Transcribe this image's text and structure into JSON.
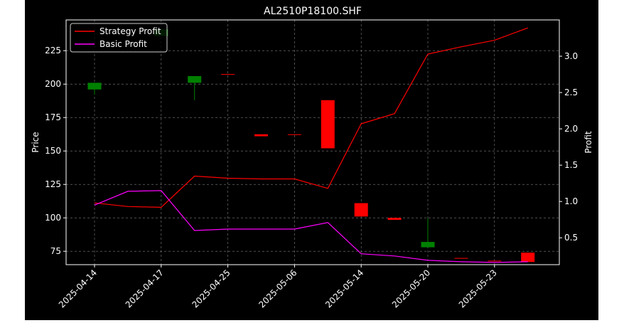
{
  "chart_data": {
    "type": "candlestick+line",
    "title": "AL2510P18100.SHF",
    "ylabel_left": "Price",
    "ylabel_right": "Profit",
    "grid": true,
    "legend_placement": "top-left",
    "legend": [
      "Strategy Profit",
      "Basic Profit"
    ],
    "colors": {
      "background": "#000000",
      "up": "#008000",
      "down": "#ff0000",
      "strategy": "#ff0000",
      "basic": "#ff00ff",
      "text": "#ffffff",
      "grid": "#808080"
    },
    "x_tick_labels": [
      "2025-04-14",
      "2025-04-17",
      "2025-04-25",
      "2025-05-06",
      "2025-05-14",
      "2025-05-20",
      "2025-05-23"
    ],
    "x_tick_index": [
      0,
      2,
      4,
      6,
      8,
      10,
      12
    ],
    "ylim_left": [
      65,
      248
    ],
    "yticks_left": [
      75,
      100,
      125,
      150,
      175,
      200,
      225
    ],
    "ylim_right": [
      0.13,
      3.5
    ],
    "yticks_right": [
      "0.5",
      "1.0",
      "1.5",
      "2.0",
      "2.5",
      "3.0"
    ],
    "candles": [
      {
        "index": 0,
        "open": 196,
        "close": 201,
        "high": 201,
        "low": 192
      },
      {
        "index": 1,
        "open": 250,
        "close": 250,
        "high": 250,
        "low": 250
      },
      {
        "index": 2,
        "open": 236,
        "close": 241,
        "high": 241,
        "low": 236
      },
      {
        "index": 3,
        "open": 201,
        "close": 206,
        "high": 206,
        "low": 188
      },
      {
        "index": 4,
        "open": 207.5,
        "close": 207,
        "high": 207.5,
        "low": 207
      },
      {
        "index": 5,
        "open": 162.5,
        "close": 161,
        "high": 162.5,
        "low": 161
      },
      {
        "index": 6,
        "open": 162.5,
        "close": 162,
        "high": 162.5,
        "low": 162
      },
      {
        "index": 7,
        "open": 188,
        "close": 152,
        "high": 188,
        "low": 152
      },
      {
        "index": 8,
        "open": 111,
        "close": 101,
        "high": 111,
        "low": 101
      },
      {
        "index": 9,
        "open": 100,
        "close": 98.5,
        "high": 100,
        "low": 98.5
      },
      {
        "index": 10,
        "open": 78,
        "close": 82,
        "high": 100,
        "low": 78
      },
      {
        "index": 11,
        "open": 70,
        "close": 69.5,
        "high": 70,
        "low": 69.5
      },
      {
        "index": 12,
        "open": 68,
        "close": 67.5,
        "high": 68,
        "low": 67.5
      },
      {
        "index": 13,
        "open": 74,
        "close": 67,
        "high": 74,
        "low": 67
      }
    ],
    "series": [
      {
        "name": "Strategy Profit",
        "values": [
          0.98,
          0.93,
          0.92,
          1.35,
          1.32,
          1.31,
          1.31,
          1.18,
          2.07,
          2.21,
          3.03,
          3.13,
          3.22,
          3.39
        ]
      },
      {
        "name": "Basic Profit",
        "values": [
          0.95,
          1.14,
          1.15,
          0.6,
          0.62,
          0.62,
          0.62,
          0.71,
          0.28,
          0.25,
          0.19,
          0.17,
          0.16,
          0.17
        ]
      }
    ]
  }
}
